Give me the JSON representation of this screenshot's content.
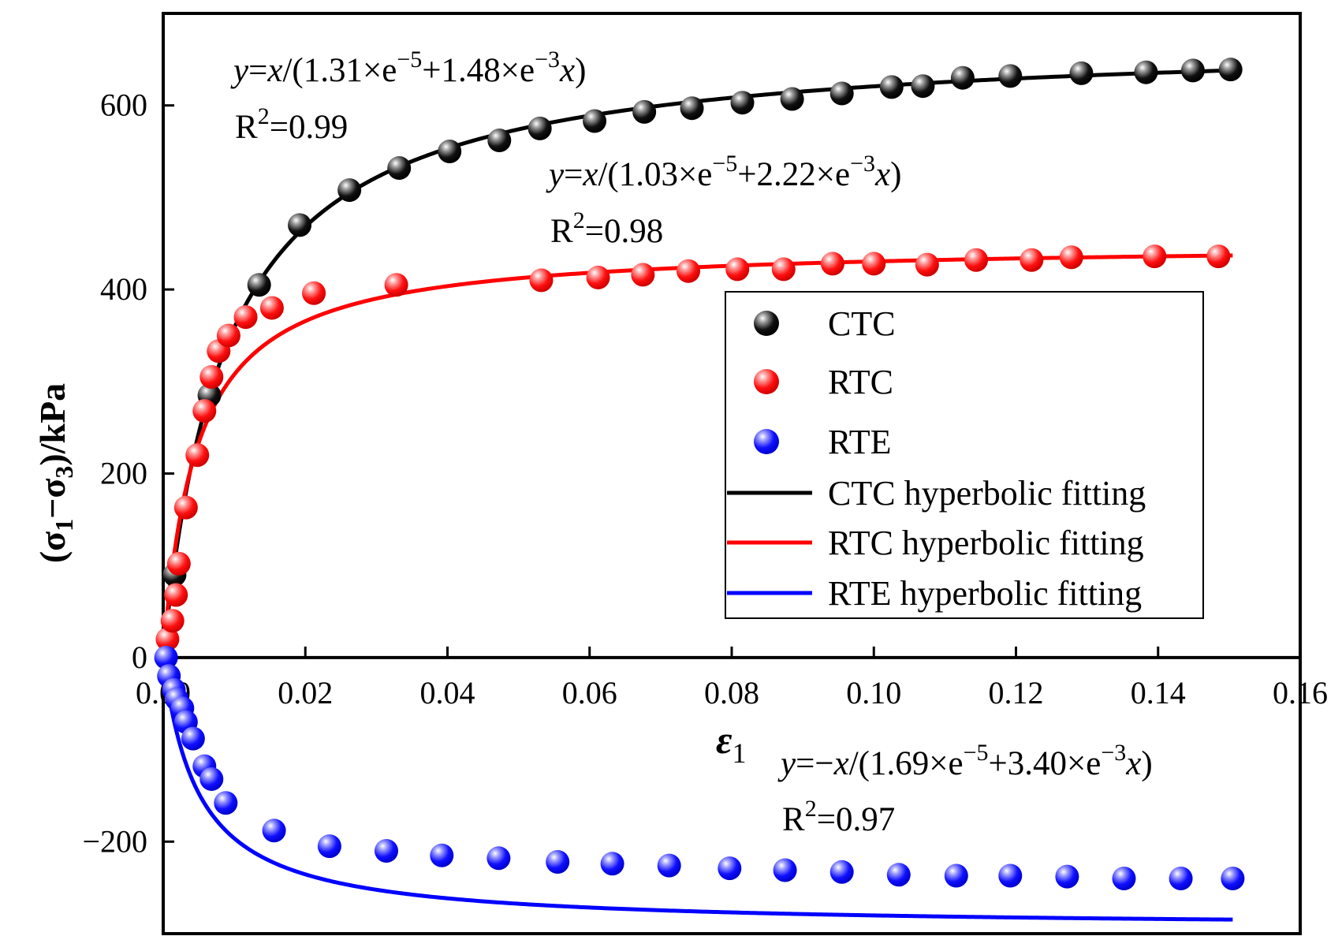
{
  "chart_data": {
    "type": "scatter",
    "title": "",
    "xlabel": "ε1",
    "ylabel": "(σ1−σ3)/kPa",
    "xlim": [
      0,
      0.16
    ],
    "ylim": [
      -300,
      700
    ],
    "x_ticks": [
      {
        "value": 0,
        "label": "0.00"
      },
      {
        "value": 0.02,
        "label": "0.02"
      },
      {
        "value": 0.04,
        "label": "0.04"
      },
      {
        "value": 0.06,
        "label": "0.06"
      },
      {
        "value": 0.08,
        "label": "0.08"
      },
      {
        "value": 0.1,
        "label": "0.10"
      },
      {
        "value": 0.12,
        "label": "0.12"
      },
      {
        "value": 0.14,
        "label": "0.14"
      },
      {
        "value": 0.16,
        "label": "0.16"
      }
    ],
    "y_ticks": [
      {
        "value": -200,
        "label": "−200"
      },
      {
        "value": 0,
        "label": "0"
      },
      {
        "value": 200,
        "label": "200"
      },
      {
        "value": 400,
        "label": "400"
      },
      {
        "value": 600,
        "label": "600"
      }
    ],
    "series": [
      {
        "name": "CTC",
        "kind": "points",
        "color": "#000000",
        "x": [
          0.0016,
          0.0065,
          0.0135,
          0.0192,
          0.0262,
          0.0332,
          0.0403,
          0.0473,
          0.053,
          0.0607,
          0.0677,
          0.0744,
          0.0815,
          0.0885,
          0.0955,
          0.1025,
          0.1069,
          0.1125,
          0.1192,
          0.1292,
          0.1383,
          0.1449,
          0.1502
        ],
        "y": [
          90,
          285,
          405,
          470,
          508,
          532,
          550,
          562,
          575,
          583,
          593,
          597,
          603,
          607,
          613,
          620,
          621,
          630,
          632,
          635,
          636,
          638,
          639
        ]
      },
      {
        "name": "RTC",
        "kind": "points",
        "color": "#ff0000",
        "x": [
          0.0006,
          0.0013,
          0.0018,
          0.0022,
          0.0032,
          0.0048,
          0.0058,
          0.0068,
          0.0078,
          0.0092,
          0.0116,
          0.0153,
          0.0212,
          0.0328,
          0.0532,
          0.0612,
          0.0675,
          0.0739,
          0.0808,
          0.0873,
          0.0942,
          0.1,
          0.1075,
          0.1144,
          0.1222,
          0.1278,
          0.1395,
          0.1485
        ],
        "y": [
          20,
          40,
          68,
          102,
          163,
          220,
          268,
          305,
          333,
          350,
          370,
          380,
          396,
          405,
          410,
          413,
          416,
          420,
          422,
          422,
          428,
          428,
          427,
          432,
          432,
          435,
          436,
          436
        ]
      },
      {
        "name": "RTE",
        "kind": "points",
        "color": "#0000ff",
        "x": [
          0.0004,
          0.0008,
          0.0015,
          0.0019,
          0.0027,
          0.0032,
          0.0042,
          0.0058,
          0.0068,
          0.0088,
          0.0156,
          0.0234,
          0.0314,
          0.0392,
          0.0472,
          0.0555,
          0.0632,
          0.0712,
          0.0797,
          0.0875,
          0.0955,
          0.1035,
          0.1116,
          0.1192,
          0.1272,
          0.1352,
          0.1432,
          0.1505
        ],
        "y": [
          0,
          -20,
          -35,
          -45,
          -55,
          -70,
          -88,
          -118,
          -132,
          -158,
          -188,
          -205,
          -210,
          -215,
          -218,
          -222,
          -224,
          -226,
          -229,
          -231,
          -233,
          -236,
          -237,
          -237,
          -238,
          -240,
          -240,
          -240
        ]
      },
      {
        "name": "CTC hyperbolic fitting",
        "kind": "line",
        "color": "#000000",
        "a": 1.31e-05,
        "b": 0.00148,
        "sign": 1
      },
      {
        "name": "RTC hyperbolic fitting",
        "kind": "line",
        "color": "#ff0000",
        "a": 1.03e-05,
        "b": 0.00222,
        "sign": 1
      },
      {
        "name": "RTE hyperbolic fitting",
        "kind": "line",
        "color": "#0000ff",
        "a": 1.69e-05,
        "b": 0.0034,
        "sign": -1
      }
    ],
    "legend": {
      "position": "center-right",
      "entries": [
        "CTC",
        "RTC",
        "RTE",
        "CTC hyperbolic fitting",
        "RTC hyperbolic fitting",
        "RTE hyperbolic fitting"
      ]
    },
    "annotations": {
      "ctc_eq": {
        "y": "y",
        "eq": "=",
        "x1": "x",
        "mid": "/(1.31×e",
        "exp1": "−5",
        "plus": "+1.48×e",
        "exp2": "−3",
        "x2": "x",
        "close": ")",
        "r": "R",
        "r_exp": "2",
        "r_val": "=0.99"
      },
      "rtc_eq": {
        "y": "y",
        "eq": "=",
        "x1": "x",
        "mid": "/(1.03×e",
        "exp1": "−5",
        "plus": "+2.22×e",
        "exp2": "−3",
        "x2": "x",
        "close": ")",
        "r": "R",
        "r_exp": "2",
        "r_val": "=0.98"
      },
      "rte_eq": {
        "y": "y",
        "eq": "=−",
        "x1": "x",
        "mid": "/(1.69×e",
        "exp1": "−5",
        "plus": "+3.40×e",
        "exp2": "−3",
        "x2": "x",
        "close": ")",
        "r": "R",
        "r_exp": "2",
        "r_val": "=0.97"
      }
    }
  },
  "axis_labels": {
    "x_main": "ε",
    "x_sub": "1",
    "y_open": "(σ",
    "y_sub1": "1",
    "y_minus": "−σ",
    "y_sub3": "3",
    "y_close": ")/kPa"
  }
}
